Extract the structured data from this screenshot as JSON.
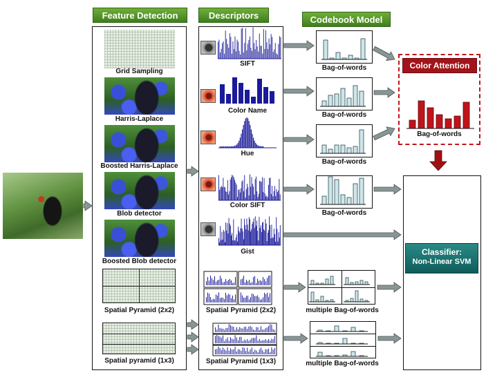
{
  "headers": {
    "feature_detection": "Feature Detection",
    "descriptors": "Descriptors",
    "codebook": "Codebook Model"
  },
  "detectors": [
    "Grid Sampling",
    "Harris-Laplace",
    "Boosted Harris-Laplace",
    "Blob detector",
    "Boosted Blob detector",
    "Spatial Pyramid (2x2)",
    "Spatial pyramid (1x3)"
  ],
  "descriptors": [
    "SIFT",
    "Color Name",
    "Hue",
    "Color SIFT",
    "Gist",
    "Spatial Pyramid (2x2)",
    "Spatial Pyramid (1x3)"
  ],
  "codebook_labels": [
    "Bag-of-words",
    "Bag-of-words",
    "Bag-of-words",
    "Bag-of-words",
    "multiple Bag-of-words",
    "multiple Bag-of-words"
  ],
  "color_attention": {
    "title": "Color Attention",
    "label": "Bag-of-words",
    "color": "#b0101a"
  },
  "classifier": {
    "title": "Classifier:",
    "subtitle": "Non-Linear SVM"
  },
  "colors": {
    "header_green": "#4f8f2a",
    "descriptor_blue": "#1a1a9a",
    "bow_fill": "#cde6ea",
    "arrow_gray": "#8a9696",
    "attention_red": "#c0141b",
    "classifier_teal": "#1a7472"
  }
}
